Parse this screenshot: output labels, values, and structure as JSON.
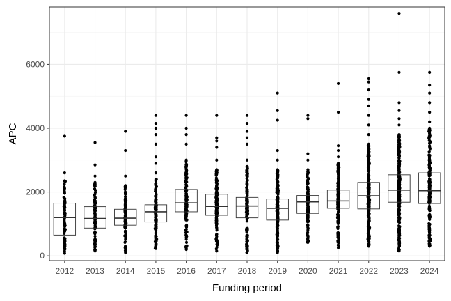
{
  "chart_data": {
    "type": "box",
    "title": "",
    "xlabel": "Funding period",
    "ylabel": "APC",
    "ylim": [
      -150,
      7800
    ],
    "yticks": [
      0,
      2000,
      4000,
      6000
    ],
    "ytick_labels": [
      "0",
      "2000",
      "4000",
      "6000"
    ],
    "grid": true,
    "legend": "none",
    "categories": [
      "2012",
      "2013",
      "2014",
      "2015",
      "2016",
      "2017",
      "2018",
      "2019",
      "2020",
      "2021",
      "2022",
      "2023",
      "2024"
    ],
    "boxes": [
      {
        "x": "2012",
        "q1": 650,
        "median": 1200,
        "q3": 1650,
        "whisker_low": 80,
        "whisker_high": 2350,
        "outliers": [
          2600,
          3750
        ],
        "n": 80
      },
      {
        "x": "2013",
        "q1": 870,
        "median": 1170,
        "q3": 1540,
        "whisker_low": 150,
        "whisker_high": 2300,
        "outliers": [
          2500,
          2850,
          3550
        ],
        "n": 100
      },
      {
        "x": "2014",
        "q1": 960,
        "median": 1180,
        "q3": 1460,
        "whisker_low": 100,
        "whisker_high": 2200,
        "outliers": [
          2500,
          3300,
          3900
        ],
        "n": 110
      },
      {
        "x": "2015",
        "q1": 1060,
        "median": 1380,
        "q3": 1600,
        "whisker_low": 230,
        "whisker_high": 2400,
        "outliers": [
          2600,
          2900,
          3100,
          3500,
          3800,
          4000,
          4150,
          4400
        ],
        "n": 160
      },
      {
        "x": "2016",
        "q1": 1380,
        "median": 1660,
        "q3": 2080,
        "whisker_low": 200,
        "whisker_high": 3000,
        "outliers": [
          3500,
          3800,
          4000,
          4400
        ],
        "n": 170
      },
      {
        "x": "2017",
        "q1": 1270,
        "median": 1550,
        "q3": 1930,
        "whisker_low": 150,
        "whisker_high": 2700,
        "outliers": [
          3000,
          3400,
          3600,
          3700,
          4400
        ],
        "n": 170
      },
      {
        "x": "2018",
        "q1": 1190,
        "median": 1560,
        "q3": 1830,
        "whisker_low": 100,
        "whisker_high": 2800,
        "outliers": [
          3000,
          3500,
          3700,
          3900,
          4150,
          4400
        ],
        "n": 180
      },
      {
        "x": "2019",
        "q1": 1120,
        "median": 1490,
        "q3": 1780,
        "whisker_low": 100,
        "whisker_high": 2700,
        "outliers": [
          3000,
          3300,
          4250,
          4550,
          5100
        ],
        "n": 260
      },
      {
        "x": "2020",
        "q1": 1330,
        "median": 1690,
        "q3": 1890,
        "whisker_low": 420,
        "whisker_high": 2700,
        "outliers": [
          3000,
          3200,
          4300,
          4400
        ],
        "n": 160
      },
      {
        "x": "2021",
        "q1": 1490,
        "median": 1720,
        "q3": 2060,
        "whisker_low": 250,
        "whisker_high": 2900,
        "outliers": [
          3100,
          3300,
          3450,
          4500,
          5400
        ],
        "n": 200
      },
      {
        "x": "2022",
        "q1": 1470,
        "median": 1880,
        "q3": 2300,
        "whisker_low": 300,
        "whisker_high": 3500,
        "outliers": [
          3800,
          4100,
          4400,
          4700,
          4900,
          5200,
          5450,
          5550
        ],
        "n": 330
      },
      {
        "x": "2023",
        "q1": 1680,
        "median": 2060,
        "q3": 2540,
        "whisker_low": 150,
        "whisker_high": 3800,
        "outliers": [
          4100,
          4300,
          4550,
          4800,
          5750,
          7600
        ],
        "n": 420
      },
      {
        "x": "2024",
        "q1": 1640,
        "median": 2040,
        "q3": 2600,
        "whisker_low": 300,
        "whisker_high": 4000,
        "outliers": [
          4200,
          4500,
          4800,
          5100,
          5350,
          5750
        ],
        "n": 260
      }
    ]
  }
}
